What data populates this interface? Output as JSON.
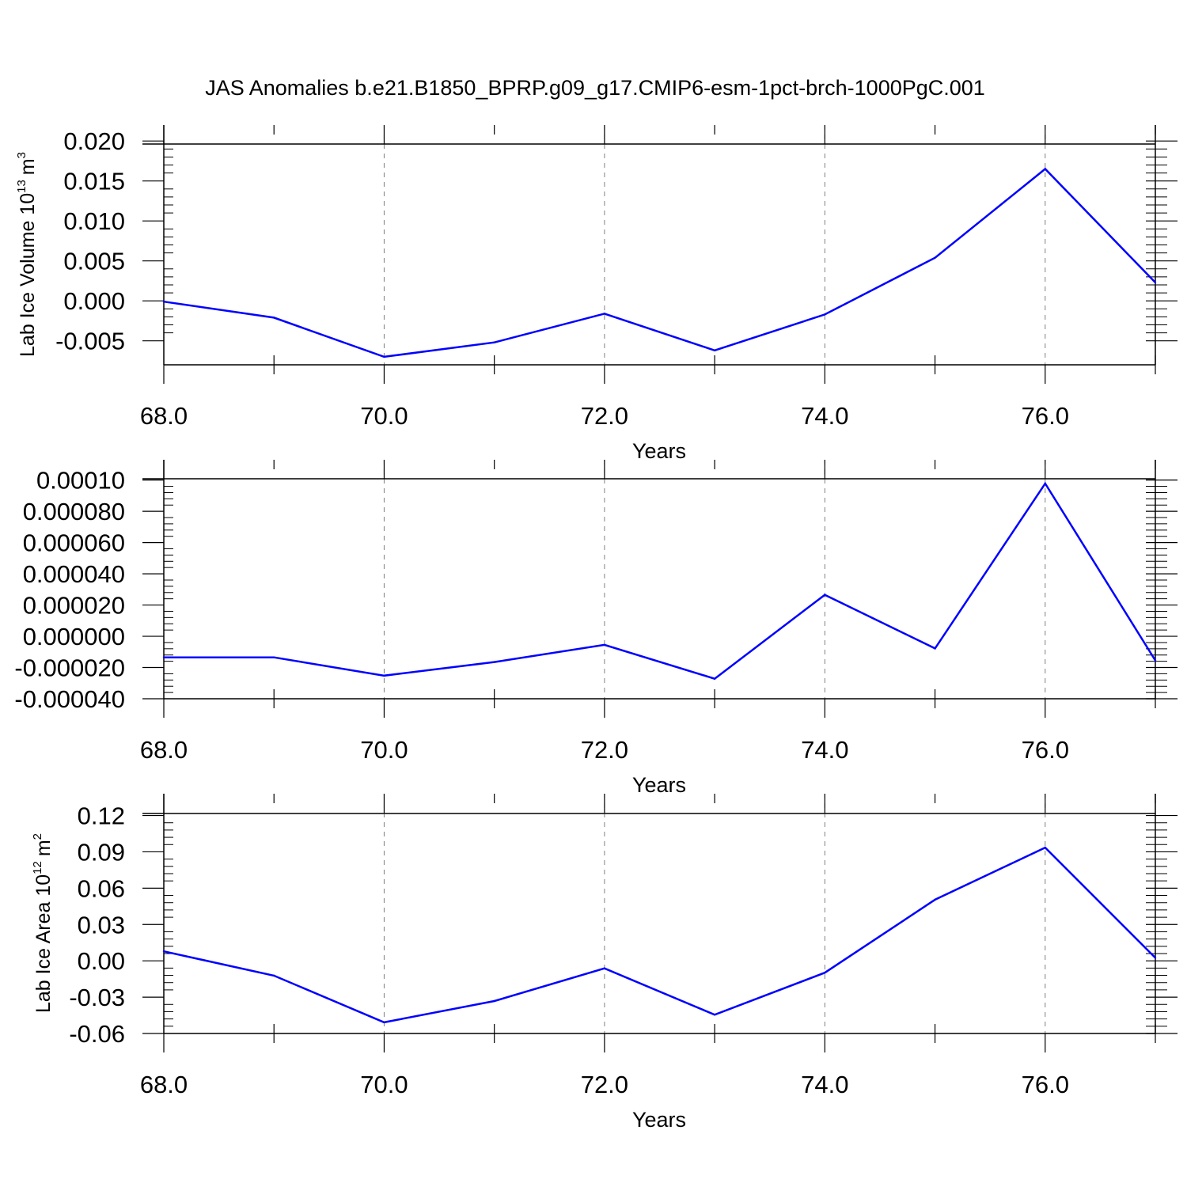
{
  "figure_title": "JAS Anomalies b.e21.B1850_BPRP.g09_g17.CMIP6-esm-1pct-brch-1000PgC.001",
  "colors": {
    "line": "#0000ff",
    "axis": "#000000",
    "grid": "#808080"
  },
  "chart_data": [
    {
      "type": "line",
      "xlabel": "Years",
      "ylabel": {
        "text": "Lab Ice Volume 10",
        "exponent": "13",
        "unit": "m",
        "unit_exponent": "3"
      },
      "xlim": [
        68,
        77
      ],
      "ylim": [
        -0.008,
        0.022
      ],
      "xticks": [
        68,
        70,
        72,
        74,
        76
      ],
      "xtick_labels": [
        "68.0",
        "70.0",
        "72.0",
        "74.0",
        "76.0"
      ],
      "yticks": [
        -0.005,
        0.0,
        0.005,
        0.01,
        0.015,
        0.02
      ],
      "ytick_labels": [
        "-0.005",
        "0.000",
        "0.005",
        "0.010",
        "0.015",
        "0.020"
      ],
      "grid": "vertical dashed at major x ticks",
      "series": [
        {
          "x": [
            68,
            69,
            70,
            71,
            72,
            73,
            74,
            75,
            76,
            77
          ],
          "y": [
            -0.0001,
            -0.0021,
            -0.007,
            -0.0052,
            -0.0016,
            -0.0062,
            -0.0017,
            0.0054,
            0.0165,
            0.0023
          ]
        }
      ]
    },
    {
      "type": "line",
      "xlabel": "Years",
      "ylabel": null,
      "xlim": [
        68,
        77
      ],
      "ylim": [
        -4e-05,
        0.000113
      ],
      "xticks": [
        68,
        70,
        72,
        74,
        76
      ],
      "xtick_labels": [
        "68.0",
        "70.0",
        "72.0",
        "74.0",
        "76.0"
      ],
      "yticks": [
        -4e-05,
        -2e-05,
        0.0,
        2e-05,
        4e-05,
        6e-05,
        8e-05,
        0.0001
      ],
      "ytick_labels": [
        "-0.000040",
        "-0.000020",
        "0.000000",
        "0.000020",
        "0.000040",
        "0.000060",
        "0.000080",
        "0.00010"
      ],
      "grid": "vertical dashed at major x ticks",
      "series": [
        {
          "x": [
            68,
            69,
            70,
            71,
            72,
            73,
            74,
            75,
            76,
            77
          ],
          "y": [
            -1.35e-05,
            -1.35e-05,
            -2.52e-05,
            -1.65e-05,
            -5.5e-06,
            -2.72e-05,
            2.65e-05,
            -7.8e-06,
            9.78e-05,
            -1.55e-05
          ]
        }
      ]
    },
    {
      "type": "line",
      "xlabel": "Years",
      "ylabel": {
        "text": "Lab Ice Area 10",
        "exponent": "12",
        "unit": "m",
        "unit_exponent": "2"
      },
      "xlim": [
        68,
        77
      ],
      "ylim": [
        -0.06,
        0.138
      ],
      "xticks": [
        68,
        70,
        72,
        74,
        76
      ],
      "xtick_labels": [
        "68.0",
        "70.0",
        "72.0",
        "74.0",
        "76.0"
      ],
      "yticks": [
        -0.06,
        -0.03,
        0.0,
        0.03,
        0.06,
        0.09,
        0.12
      ],
      "ytick_labels": [
        "-0.06",
        "-0.03",
        "0.00",
        "0.03",
        "0.06",
        "0.09",
        "0.12"
      ],
      "grid": "vertical dashed at major x ticks",
      "series": [
        {
          "x": [
            68,
            69,
            70,
            71,
            72,
            73,
            74,
            75,
            76,
            77
          ],
          "y": [
            0.0078,
            -0.0122,
            -0.0508,
            -0.0332,
            -0.0062,
            -0.0445,
            -0.0098,
            0.0505,
            0.0935,
            0.0025
          ]
        }
      ]
    }
  ]
}
